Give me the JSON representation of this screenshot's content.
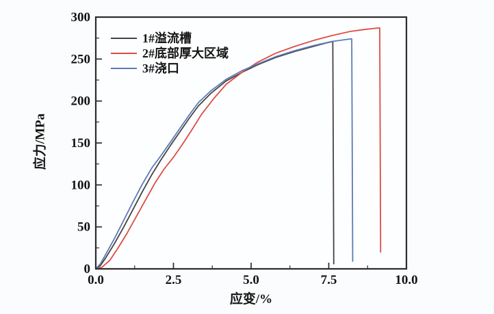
{
  "figure": {
    "background": "#fbfcfd",
    "plot_background": "#fdfeff",
    "axis_color": "#2b2b2b"
  },
  "chart_data": {
    "type": "line",
    "title": "",
    "xlabel": "应变/%",
    "ylabel": "应力/MPa",
    "xlim": [
      0,
      10
    ],
    "ylim": [
      0,
      300
    ],
    "grid": false,
    "legend_position": "top-left",
    "x_major_ticks": [
      0,
      2.5,
      5,
      7.5,
      10
    ],
    "x_tick_labels": [
      "0.0",
      "2.5",
      "5.0",
      "7.5",
      "10.0"
    ],
    "x_minor_ticks": [
      1.25,
      3.75,
      6.25,
      8.75
    ],
    "y_major_ticks": [
      0,
      50,
      100,
      150,
      200,
      250,
      300
    ],
    "y_tick_labels": [
      "0",
      "50",
      "100",
      "150",
      "200",
      "250",
      "300"
    ],
    "y_minor_ticks": [
      25,
      75,
      125,
      175,
      225,
      275
    ],
    "series": [
      {
        "name": "1#溢流槽",
        "color": "#454240",
        "peak_stress_mpa": 271,
        "fracture_strain_pct": 7.63,
        "points": [
          [
            0,
            0
          ],
          [
            0.15,
            4
          ],
          [
            0.3,
            12
          ],
          [
            0.6,
            30
          ],
          [
            0.9,
            50
          ],
          [
            1.2,
            71
          ],
          [
            1.5,
            92
          ],
          [
            1.8,
            112
          ],
          [
            2.1,
            130
          ],
          [
            2.4,
            147
          ],
          [
            2.7,
            163
          ],
          [
            3.0,
            179
          ],
          [
            3.3,
            194
          ],
          [
            3.7,
            209
          ],
          [
            4.2,
            224
          ],
          [
            4.7,
            234
          ],
          [
            5.2,
            243
          ],
          [
            5.8,
            252
          ],
          [
            6.4,
            259
          ],
          [
            7.0,
            265
          ],
          [
            7.4,
            269
          ],
          [
            7.63,
            271
          ],
          [
            7.66,
            6
          ]
        ]
      },
      {
        "name": "2#底部厚大区域",
        "color": "#dc4b42",
        "peak_stress_mpa": 287,
        "fracture_strain_pct": 9.14,
        "points": [
          [
            0,
            0
          ],
          [
            0.2,
            2
          ],
          [
            0.45,
            10
          ],
          [
            0.7,
            24
          ],
          [
            1.0,
            42
          ],
          [
            1.3,
            62
          ],
          [
            1.6,
            82
          ],
          [
            1.9,
            102
          ],
          [
            2.2,
            119
          ],
          [
            2.5,
            133
          ],
          [
            2.8,
            149
          ],
          [
            3.1,
            166
          ],
          [
            3.4,
            184
          ],
          [
            3.8,
            203
          ],
          [
            4.2,
            220
          ],
          [
            4.7,
            234
          ],
          [
            5.2,
            246
          ],
          [
            5.8,
            257
          ],
          [
            6.4,
            265
          ],
          [
            7.0,
            272
          ],
          [
            7.6,
            278
          ],
          [
            8.2,
            283
          ],
          [
            8.7,
            285.5
          ],
          [
            9.1,
            287
          ],
          [
            9.14,
            287
          ],
          [
            9.17,
            20
          ]
        ]
      },
      {
        "name": "3#浇口",
        "color": "#5b7ab8",
        "peak_stress_mpa": 274,
        "fracture_strain_pct": 8.24,
        "points": [
          [
            0,
            0
          ],
          [
            0.15,
            6
          ],
          [
            0.3,
            16
          ],
          [
            0.6,
            36
          ],
          [
            0.9,
            58
          ],
          [
            1.2,
            80
          ],
          [
            1.5,
            101
          ],
          [
            1.8,
            120
          ],
          [
            2.1,
            135
          ],
          [
            2.4,
            151
          ],
          [
            2.7,
            167
          ],
          [
            3.0,
            183
          ],
          [
            3.3,
            198
          ],
          [
            3.7,
            212
          ],
          [
            4.2,
            226
          ],
          [
            4.7,
            236
          ],
          [
            5.2,
            244
          ],
          [
            5.8,
            253
          ],
          [
            6.4,
            260
          ],
          [
            7.0,
            266
          ],
          [
            7.6,
            271
          ],
          [
            8.0,
            273
          ],
          [
            8.2,
            274
          ],
          [
            8.24,
            274
          ],
          [
            8.27,
            9
          ]
        ]
      }
    ]
  }
}
